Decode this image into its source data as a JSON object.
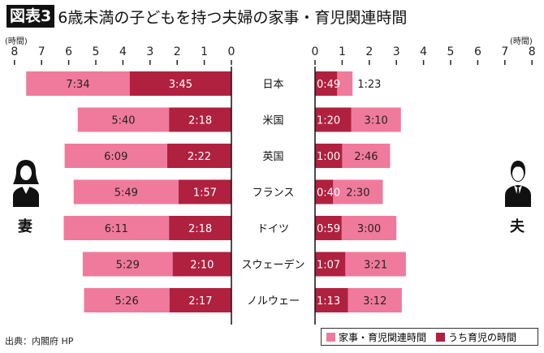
{
  "title": {
    "badge": "図表3",
    "text": "6歳未満の子どもを持つ夫婦の家事・育児関連時間"
  },
  "unit_label": "(時間)",
  "wife_label": "妻",
  "husband_label": "夫",
  "source": "出典：内閣府 HP",
  "colors": {
    "total": "#f07a9c",
    "childcare": "#b0213f"
  },
  "legend": [
    {
      "label": "家事・育児関連時間",
      "color": "#f07a9c"
    },
    {
      "label": "うち育児の時間",
      "color": "#b0213f"
    }
  ],
  "chart_data": {
    "type": "bar",
    "orientation": "horizontal-butterfly",
    "xlim": [
      0,
      8
    ],
    "ticks": [
      0,
      1,
      2,
      3,
      4,
      5,
      6,
      7,
      8
    ],
    "categories": [
      "日本",
      "米国",
      "英国",
      "フランス",
      "ドイツ",
      "スウェーデン",
      "ノルウェー"
    ],
    "wife": {
      "total": [
        "7:34",
        "5:40",
        "6:09",
        "5:49",
        "6:11",
        "5:29",
        "5:26"
      ],
      "childcare": [
        "3:45",
        "2:18",
        "2:22",
        "1:57",
        "2:18",
        "2:10",
        "2:17"
      ]
    },
    "husband": {
      "total": [
        "1:23",
        "3:10",
        "2:46",
        "2:30",
        "3:00",
        "3:21",
        "3:12"
      ],
      "childcare": [
        "0:49",
        "1:20",
        "1:00",
        "0:40",
        "0:59",
        "1:07",
        "1:13"
      ]
    }
  }
}
